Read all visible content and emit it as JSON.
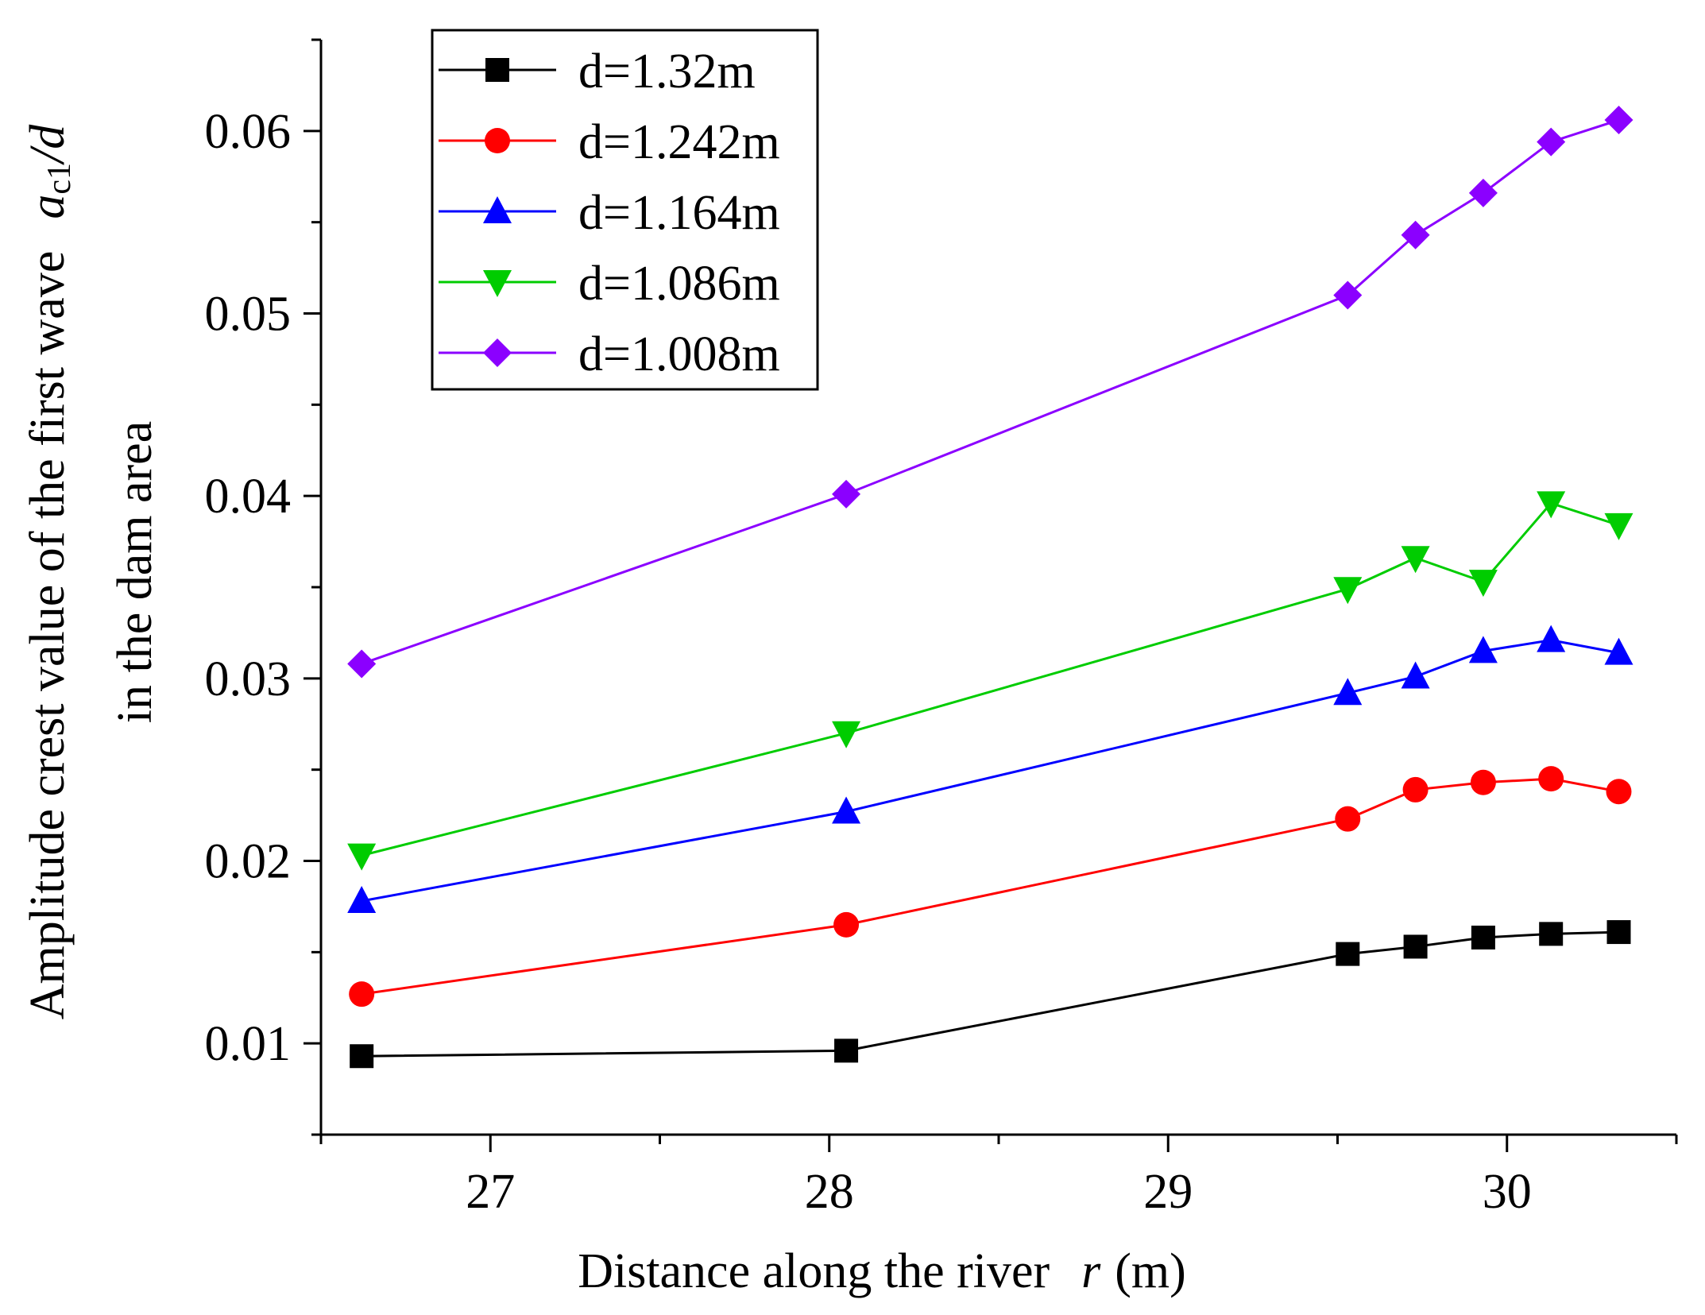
{
  "chart_data": {
    "type": "line",
    "xlabel": "Distance along the river",
    "xlabel_var": "r",
    "xlabel_unit": "(m)",
    "ylabel_line1": "Amplitude crest value of the first wave",
    "ylabel_var_a": "a",
    "ylabel_var_sub": "c1",
    "ylabel_var_d": "/d",
    "ylabel_line2": "in the dam area",
    "xlim": [
      26.5,
      30.5
    ],
    "ylim": [
      0.005,
      0.065
    ],
    "xticks": [
      27,
      28,
      29,
      30
    ],
    "xtick_labels": [
      "27",
      "28",
      "29",
      "30"
    ],
    "yticks": [
      0.01,
      0.02,
      0.03,
      0.04,
      0.05,
      0.06
    ],
    "ytick_labels": [
      "0.01",
      "0.02",
      "0.03",
      "0.04",
      "0.05",
      "0.06"
    ],
    "legend_position": "top-left",
    "x": [
      26.62,
      28.05,
      29.53,
      29.73,
      29.93,
      30.13,
      30.33
    ],
    "series": [
      {
        "name": "d=1.32m",
        "color": "#000000",
        "marker": "square",
        "values": [
          0.0093,
          0.0096,
          0.0149,
          0.0153,
          0.0158,
          0.016,
          0.0161
        ]
      },
      {
        "name": "d=1.242m",
        "color": "#ff0000",
        "marker": "circle",
        "values": [
          0.0127,
          0.0165,
          0.0223,
          0.0239,
          0.0243,
          0.0245,
          0.0238
        ]
      },
      {
        "name": "d=1.164m",
        "color": "#0000ff",
        "marker": "triangle-up",
        "values": [
          0.0178,
          0.0227,
          0.0292,
          0.0301,
          0.0315,
          0.0321,
          0.0314
        ]
      },
      {
        "name": "d=1.086m",
        "color": "#00cc00",
        "marker": "triangle-down",
        "values": [
          0.0203,
          0.027,
          0.0349,
          0.0366,
          0.0353,
          0.0396,
          0.0384
        ]
      },
      {
        "name": "d=1.008m",
        "color": "#8b00ff",
        "marker": "diamond",
        "values": [
          0.0308,
          0.0401,
          0.051,
          0.0543,
          0.0566,
          0.0594,
          0.0606
        ]
      }
    ]
  }
}
